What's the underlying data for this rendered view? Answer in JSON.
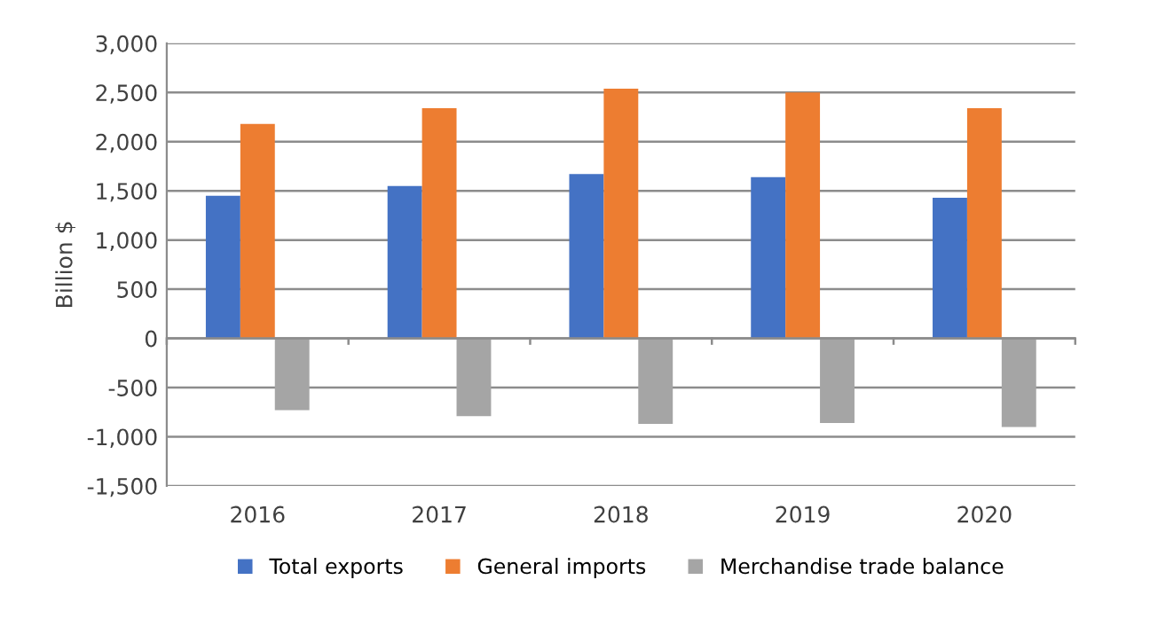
{
  "chart_data": {
    "type": "bar",
    "ylabel": "Billion $",
    "categories": [
      "2016",
      "2017",
      "2018",
      "2019",
      "2020"
    ],
    "series": [
      {
        "name": "Total exports",
        "color": "#4472c4",
        "values": [
          1450,
          1550,
          1670,
          1640,
          1430
        ]
      },
      {
        "name": "General imports",
        "color": "#ed7d31",
        "values": [
          2180,
          2340,
          2540,
          2500,
          2340
        ]
      },
      {
        "name": "Merchandise trade balance",
        "color": "#a5a5a5",
        "values": [
          -730,
          -790,
          -870,
          -860,
          -900
        ]
      }
    ],
    "ylim": [
      -1500,
      3000
    ],
    "yticks": [
      {
        "value": -1500,
        "label": "-1,500"
      },
      {
        "value": -1000,
        "label": "-1,000"
      },
      {
        "value": -500,
        "label": "-500"
      },
      {
        "value": 0,
        "label": "0"
      },
      {
        "value": 500,
        "label": "500"
      },
      {
        "value": 1000,
        "label": "1,000"
      },
      {
        "value": 1500,
        "label": "1,500"
      },
      {
        "value": 2000,
        "label": "2,000"
      },
      {
        "value": 2500,
        "label": "2,500"
      },
      {
        "value": 3000,
        "label": "3,000"
      }
    ],
    "grid": "y",
    "legend": "bottom"
  }
}
